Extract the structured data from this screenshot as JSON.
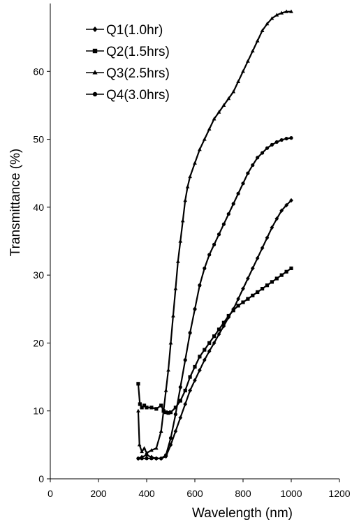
{
  "chart_data": {
    "type": "line",
    "title": "",
    "xlabel": "Wavelength (nm)",
    "ylabel": "Transmittance (%)",
    "xlim": [
      0,
      1200
    ],
    "ylim": [
      0,
      70
    ],
    "x_ticks": [
      0,
      200,
      400,
      600,
      800,
      1000,
      1200
    ],
    "y_ticks": [
      0,
      10,
      20,
      30,
      40,
      50,
      60
    ],
    "grid": false,
    "legend_position": "top-left",
    "series": [
      {
        "name": "Q1(1.0hr)",
        "marker": "diamond",
        "color": "#000000",
        "x": [
          365,
          380,
          400,
          420,
          440,
          460,
          480,
          500,
          520,
          540,
          560,
          580,
          600,
          620,
          640,
          660,
          680,
          700,
          720,
          740,
          760,
          780,
          800,
          820,
          840,
          860,
          880,
          900,
          920,
          940,
          960,
          980,
          1000
        ],
        "y": [
          3.0,
          3.2,
          3.5,
          3.2,
          3.0,
          3.0,
          3.3,
          5.0,
          7.0,
          9.0,
          11.0,
          13.0,
          14.5,
          16.0,
          17.5,
          18.8,
          20.0,
          21.3,
          22.5,
          23.8,
          25.0,
          26.5,
          28.0,
          29.5,
          31.0,
          32.5,
          34.0,
          35.5,
          37.0,
          38.3,
          39.5,
          40.3,
          41.0
        ]
      },
      {
        "name": "Q2(1.5hrs)",
        "marker": "square",
        "color": "#000000",
        "x": [
          365,
          372,
          380,
          390,
          400,
          420,
          440,
          460,
          470,
          480,
          490,
          500,
          520,
          540,
          560,
          580,
          600,
          620,
          640,
          660,
          680,
          700,
          720,
          740,
          760,
          780,
          800,
          820,
          840,
          860,
          880,
          900,
          920,
          940,
          960,
          980,
          1000
        ],
        "y": [
          14.0,
          11.0,
          10.5,
          10.8,
          10.5,
          10.5,
          10.3,
          10.8,
          10.0,
          9.8,
          9.7,
          9.8,
          10.5,
          11.5,
          13.0,
          15.0,
          16.5,
          18.0,
          19.0,
          20.0,
          21.0,
          22.0,
          23.0,
          24.0,
          24.8,
          25.5,
          26.0,
          26.5,
          27.0,
          27.5,
          28.0,
          28.5,
          29.0,
          29.5,
          30.0,
          30.5,
          31.0
        ]
      },
      {
        "name": "Q3(2.5hrs)",
        "marker": "triangle",
        "color": "#000000",
        "x": [
          365,
          370,
          380,
          390,
          400,
          420,
          440,
          460,
          470,
          480,
          490,
          500,
          510,
          520,
          530,
          540,
          550,
          560,
          570,
          580,
          600,
          620,
          640,
          660,
          680,
          700,
          720,
          740,
          760,
          780,
          800,
          820,
          840,
          860,
          880,
          900,
          920,
          940,
          960,
          980,
          1000
        ],
        "y": [
          10.0,
          5.0,
          4.0,
          4.5,
          3.8,
          4.2,
          4.5,
          7.0,
          10.0,
          13.0,
          16.0,
          20.0,
          24.0,
          28.0,
          32.0,
          35.0,
          38.0,
          41.0,
          43.0,
          44.5,
          46.5,
          48.5,
          50.0,
          51.5,
          53.0,
          54.0,
          55.0,
          56.0,
          57.0,
          58.5,
          60.0,
          61.5,
          63.0,
          64.5,
          66.0,
          67.0,
          67.8,
          68.3,
          68.6,
          68.8,
          68.8
        ]
      },
      {
        "name": "Q4(3.0hrs)",
        "marker": "circle",
        "color": "#000000",
        "x": [
          365,
          380,
          400,
          420,
          440,
          460,
          480,
          500,
          520,
          540,
          560,
          580,
          600,
          620,
          640,
          660,
          680,
          700,
          720,
          740,
          760,
          780,
          800,
          820,
          840,
          860,
          880,
          900,
          920,
          940,
          960,
          980,
          1000
        ],
        "y": [
          3.0,
          3.0,
          3.0,
          3.0,
          3.0,
          3.0,
          3.5,
          6.0,
          9.5,
          13.5,
          17.5,
          21.5,
          25.0,
          28.5,
          31.0,
          33.0,
          34.5,
          36.0,
          37.5,
          39.0,
          40.5,
          42.0,
          43.5,
          45.0,
          46.2,
          47.3,
          48.0,
          48.7,
          49.2,
          49.6,
          49.9,
          50.1,
          50.2
        ]
      }
    ]
  }
}
